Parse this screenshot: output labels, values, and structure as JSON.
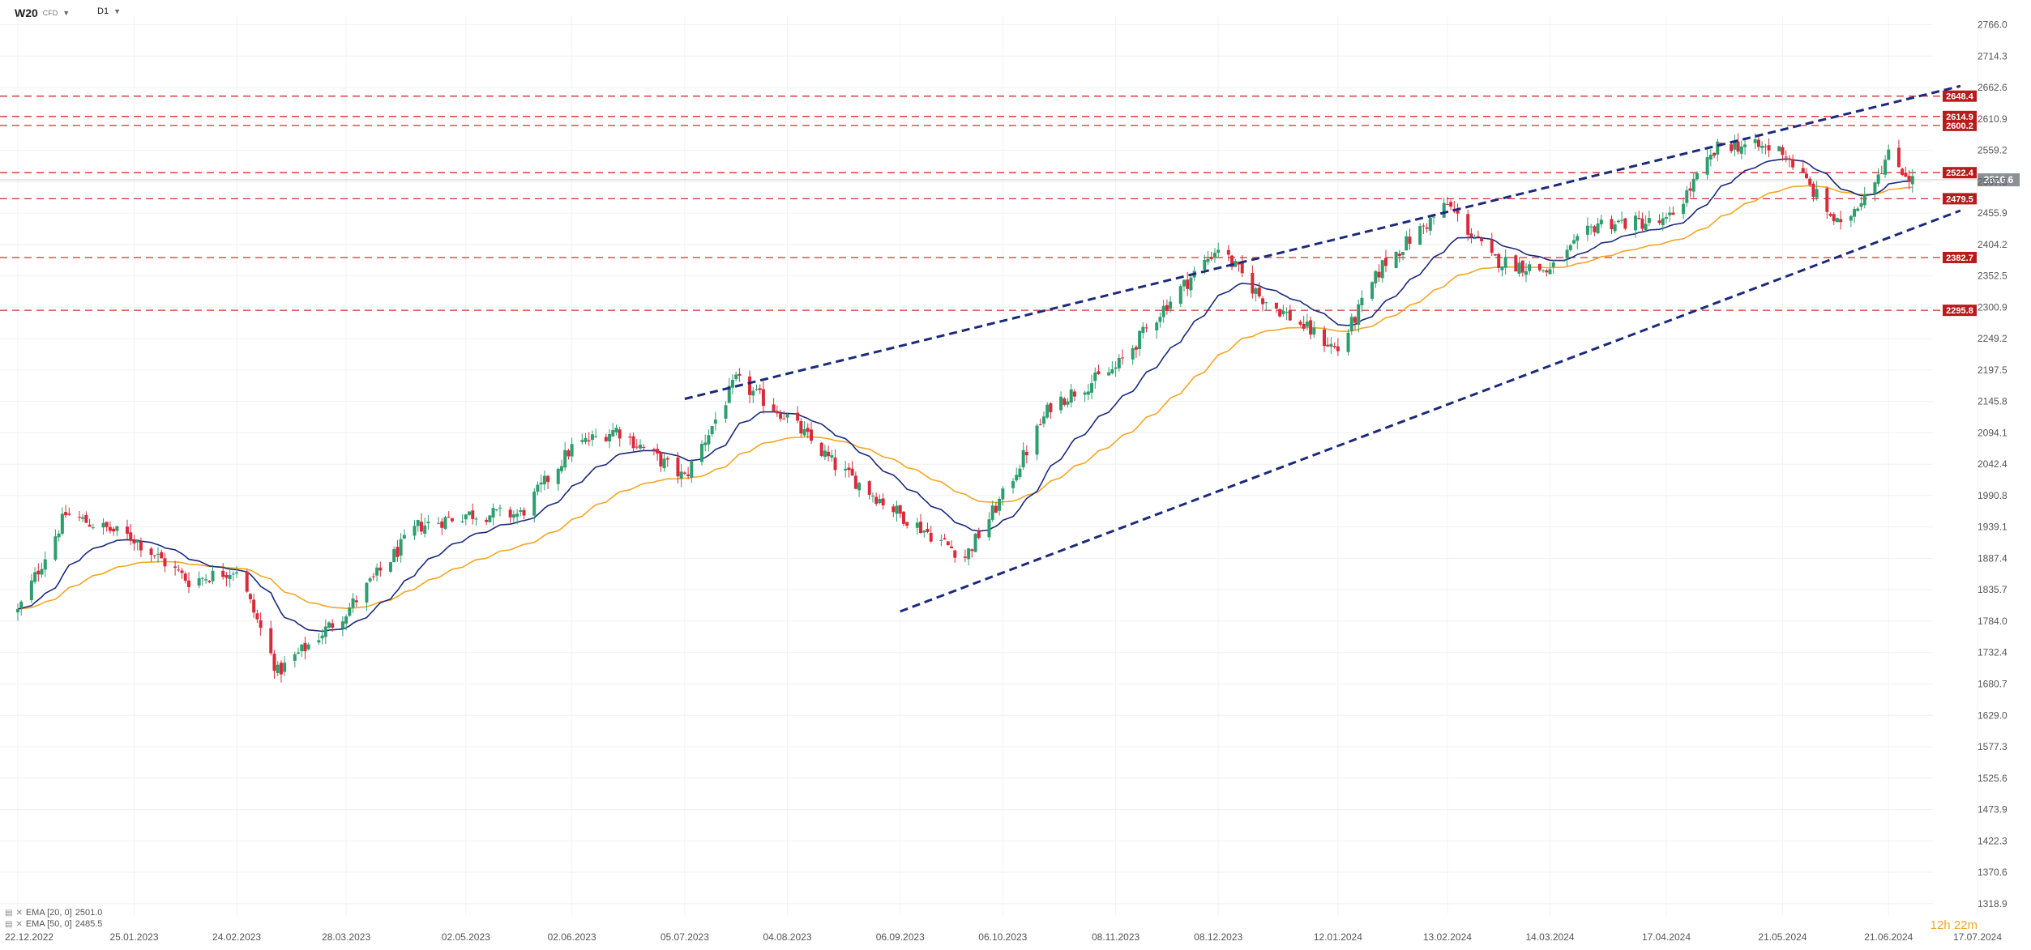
{
  "header": {
    "symbol": "W20",
    "symbol_sub": "CFD",
    "timeframe": "D1"
  },
  "legend": [
    {
      "label": "EMA [20, 0]",
      "value": "2501.0",
      "color": "#1b2a7b"
    },
    {
      "label": "EMA [50, 0]",
      "value": "2485.5",
      "color": "#f5a623"
    }
  ],
  "countdown": {
    "hours": "12h",
    "minutes": "22m"
  },
  "colors": {
    "up": "#2e9e6e",
    "down": "#d92b3a",
    "ema20": "#1b2a7b",
    "ema50": "#f5a623",
    "level": "#d32f2f",
    "channel": "#1b2a7b",
    "current": "#8a9096"
  },
  "chart_data": {
    "type": "candlestick",
    "y_range": [
      1300,
      2780
    ],
    "y_ticks": [
      "2766.0",
      "2714.3",
      "2662.6",
      "2610.9",
      "2559.2",
      "2507.5",
      "2455.9",
      "2404.2",
      "2352.5",
      "2300.9",
      "2249.2",
      "2197.5",
      "2145.8",
      "2094.1",
      "2042.4",
      "1990.8",
      "1939.1",
      "1887.4",
      "1835.7",
      "1784.0",
      "1732.4",
      "1680.7",
      "1629.0",
      "1577.3",
      "1525.6",
      "1473.9",
      "1422.3",
      "1370.6",
      "1318.9"
    ],
    "x_labels": [
      "22.12.2022",
      "25.01.2023",
      "24.02.2023",
      "28.03.2023",
      "02.05.2023",
      "02.06.2023",
      "05.07.2023",
      "04.08.2023",
      "06.09.2023",
      "06.10.2023",
      "08.11.2023",
      "08.12.2023",
      "12.01.2024",
      "13.02.2024",
      "14.03.2024",
      "17.04.2024",
      "21.05.2024",
      "21.06.2024",
      "17.07.2024"
    ],
    "anchors": [
      {
        "label": "22.12.2022",
        "close": 1800
      },
      {
        "label": "05.01.2023",
        "close": 1960
      },
      {
        "label": "25.01.2023",
        "close": 1920
      },
      {
        "label": "10.02.2023",
        "close": 1850
      },
      {
        "label": "24.02.2023",
        "close": 1870
      },
      {
        "label": "08.03.2023",
        "close": 1700
      },
      {
        "label": "28.03.2023",
        "close": 1800
      },
      {
        "label": "18.04.2023",
        "close": 1940
      },
      {
        "label": "02.05.2023",
        "close": 1960
      },
      {
        "label": "18.05.2023",
        "close": 1960
      },
      {
        "label": "02.06.2023",
        "close": 2070
      },
      {
        "label": "15.06.2023",
        "close": 2100
      },
      {
        "label": "05.07.2023",
        "close": 2020
      },
      {
        "label": "20.07.2023",
        "close": 2180
      },
      {
        "label": "04.08.2023",
        "close": 2120
      },
      {
        "label": "18.08.2023",
        "close": 2040
      },
      {
        "label": "06.09.2023",
        "close": 1960
      },
      {
        "label": "25.09.2023",
        "close": 1890
      },
      {
        "label": "06.10.2023",
        "close": 1990
      },
      {
        "label": "20.10.2023",
        "close": 2140
      },
      {
        "label": "08.11.2023",
        "close": 2200
      },
      {
        "label": "22.11.2023",
        "close": 2300
      },
      {
        "label": "08.12.2023",
        "close": 2400
      },
      {
        "label": "20.12.2023",
        "close": 2320
      },
      {
        "label": "12.01.2024",
        "close": 2230
      },
      {
        "label": "25.01.2024",
        "close": 2370
      },
      {
        "label": "13.02.2024",
        "close": 2470
      },
      {
        "label": "26.02.2024",
        "close": 2380
      },
      {
        "label": "14.03.2024",
        "close": 2360
      },
      {
        "label": "28.03.2024",
        "close": 2440
      },
      {
        "label": "17.04.2024",
        "close": 2440
      },
      {
        "label": "03.05.2024",
        "close": 2570
      },
      {
        "label": "21.05.2024",
        "close": 2560
      },
      {
        "label": "07.06.2024",
        "close": 2430
      },
      {
        "label": "21.06.2024",
        "close": 2550
      },
      {
        "label": "28.06.2024",
        "close": 2510
      }
    ],
    "levels": [
      "2648.4",
      "2614.9",
      "2600.2",
      "2522.4",
      "2479.5",
      "2382.7",
      "2295.8"
    ],
    "current_price": "2510.6",
    "channel": {
      "upper": [
        {
          "x": "05.07.2023",
          "y": 2150
        },
        {
          "x": "12.07.2024",
          "y": 2665
        }
      ],
      "lower": [
        {
          "x": "06.09.2023",
          "y": 1800
        },
        {
          "x": "12.07.2024",
          "y": 2460
        }
      ]
    }
  }
}
